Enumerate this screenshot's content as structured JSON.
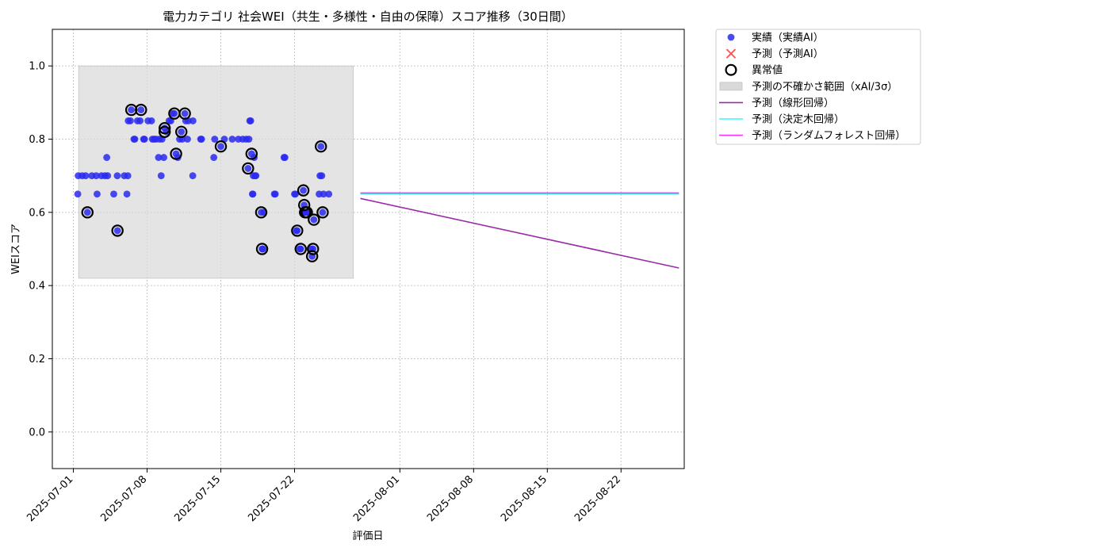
{
  "chart_data": {
    "type": "scatter",
    "title": "電力カテゴリ 社会WEI（共生・多様性・自由の保障）スコア推移（30日間）",
    "xlabel": "評価日",
    "ylabel": "WEIスコア",
    "xlim": [
      "2025-06-29",
      "2025-08-28"
    ],
    "ylim": [
      -0.1,
      1.1
    ],
    "grid": true,
    "legend_position": "outside-top-right",
    "x_tick_labels": [
      "2025-07-01",
      "2025-07-08",
      "2025-07-15",
      "2025-07-22",
      "2025-08-01",
      "2025-08-08",
      "2025-08-15",
      "2025-08-22"
    ],
    "y_tick_labels": [
      "0.0",
      "0.2",
      "0.4",
      "0.6",
      "0.8",
      "1.0"
    ],
    "y_tick_values": [
      0.0,
      0.2,
      0.4,
      0.6,
      0.8,
      1.0
    ],
    "legend": [
      {
        "label": "実績（実績AI）",
        "kind": "point",
        "color": "#2a2af0"
      },
      {
        "label": "予測（予測AI）",
        "kind": "cross",
        "color": "#ff4d4d"
      },
      {
        "label": "異常値",
        "kind": "ring",
        "color": "#000000"
      },
      {
        "label": "予測の不確かさ範囲（xAI/3σ）",
        "kind": "band",
        "color": "#d9d9d9"
      },
      {
        "label": "予測（線形回帰）",
        "kind": "line",
        "color": "#9b2aa8"
      },
      {
        "label": "予測（決定木回帰）",
        "kind": "line",
        "color": "#3ff5f5"
      },
      {
        "label": "予測（ランダムフォレスト回帰）",
        "kind": "line",
        "color": "#ff33ff"
      }
    ],
    "uncertainty_band": {
      "x_start": "2025-07-01T12:00",
      "x_end": "2025-07-27T14:00",
      "y_low": 0.42,
      "y_high": 1.0
    },
    "series": [
      {
        "name": "実績（実績AI）",
        "kind": "scatter",
        "color": "#2a2af0",
        "points": [
          [
            "2025-07-01T10:00",
            0.65
          ],
          [
            "2025-07-01T11:00",
            0.7
          ],
          [
            "2025-07-01T20:00",
            0.7
          ],
          [
            "2025-07-02T04:00",
            0.7
          ],
          [
            "2025-07-02T08:00",
            0.6
          ],
          [
            "2025-07-02T18:00",
            0.7
          ],
          [
            "2025-07-03T04:00",
            0.7
          ],
          [
            "2025-07-03T06:00",
            0.65
          ],
          [
            "2025-07-03T16:00",
            0.7
          ],
          [
            "2025-07-04T00:00",
            0.7
          ],
          [
            "2025-07-04T04:00",
            0.75
          ],
          [
            "2025-07-04T06:00",
            0.7
          ],
          [
            "2025-07-04T20:00",
            0.65
          ],
          [
            "2025-07-05T04:00",
            0.7
          ],
          [
            "2025-07-05T04:30",
            0.55
          ],
          [
            "2025-07-05T20:00",
            0.7
          ],
          [
            "2025-07-06T02:00",
            0.65
          ],
          [
            "2025-07-06T04:00",
            0.7
          ],
          [
            "2025-07-06T05:00",
            0.85
          ],
          [
            "2025-07-06T10:00",
            0.85
          ],
          [
            "2025-07-06T12:00",
            0.88
          ],
          [
            "2025-07-06T18:00",
            0.8
          ],
          [
            "2025-07-06T20:00",
            0.8
          ],
          [
            "2025-07-07T02:00",
            0.85
          ],
          [
            "2025-07-07T08:00",
            0.85
          ],
          [
            "2025-07-07T10:00",
            0.88
          ],
          [
            "2025-07-07T16:00",
            0.8
          ],
          [
            "2025-07-07T18:00",
            0.8
          ],
          [
            "2025-07-08T02:00",
            0.85
          ],
          [
            "2025-07-08T10:00",
            0.85
          ],
          [
            "2025-07-08T12:00",
            0.8
          ],
          [
            "2025-07-08T16:00",
            0.8
          ],
          [
            "2025-07-08T20:00",
            0.8
          ],
          [
            "2025-07-09T02:00",
            0.75
          ],
          [
            "2025-07-09T04:00",
            0.8
          ],
          [
            "2025-07-09T08:00",
            0.7
          ],
          [
            "2025-07-09T10:00",
            0.8
          ],
          [
            "2025-07-09T14:00",
            0.75
          ],
          [
            "2025-07-09T16:00",
            0.83
          ],
          [
            "2025-07-09T20:00",
            0.82
          ],
          [
            "2025-07-10T02:00",
            0.85
          ],
          [
            "2025-07-10T06:00",
            0.85
          ],
          [
            "2025-07-10T10:00",
            0.87
          ],
          [
            "2025-07-10T14:00",
            0.87
          ],
          [
            "2025-07-10T18:00",
            0.76
          ],
          [
            "2025-07-10T22:00",
            0.75
          ],
          [
            "2025-07-11T02:00",
            0.8
          ],
          [
            "2025-07-11T06:00",
            0.82
          ],
          [
            "2025-07-11T08:00",
            0.8
          ],
          [
            "2025-07-11T14:00",
            0.87
          ],
          [
            "2025-07-11T16:00",
            0.85
          ],
          [
            "2025-07-11T20:00",
            0.8
          ],
          [
            "2025-07-11T22:00",
            0.85
          ],
          [
            "2025-07-12T08:00",
            0.7
          ],
          [
            "2025-07-12T08:30",
            0.85
          ],
          [
            "2025-07-13T02:00",
            0.8
          ],
          [
            "2025-07-13T04:00",
            0.8
          ],
          [
            "2025-07-14T08:00",
            0.75
          ],
          [
            "2025-07-14T10:00",
            0.8
          ],
          [
            "2025-07-15T00:00",
            0.78
          ],
          [
            "2025-07-15T08:00",
            0.8
          ],
          [
            "2025-07-16T02:00",
            0.8
          ],
          [
            "2025-07-16T16:00",
            0.8
          ],
          [
            "2025-07-17T02:00",
            0.8
          ],
          [
            "2025-07-17T10:00",
            0.8
          ],
          [
            "2025-07-17T14:00",
            0.72
          ],
          [
            "2025-07-17T16:00",
            0.8
          ],
          [
            "2025-07-17T18:00",
            0.85
          ],
          [
            "2025-07-17T20:00",
            0.85
          ],
          [
            "2025-07-17T22:00",
            0.76
          ],
          [
            "2025-07-18T00:00",
            0.65
          ],
          [
            "2025-07-18T01:00",
            0.65
          ],
          [
            "2025-07-18T02:00",
            0.7
          ],
          [
            "2025-07-18T04:00",
            0.75
          ],
          [
            "2025-07-18T06:00",
            0.7
          ],
          [
            "2025-07-18T08:00",
            0.7
          ],
          [
            "2025-07-18T20:00",
            0.6
          ],
          [
            "2025-07-18T22:00",
            0.5
          ],
          [
            "2025-07-19T00:00",
            0.5
          ],
          [
            "2025-07-19T02:00",
            0.6
          ],
          [
            "2025-07-20T02:00",
            0.65
          ],
          [
            "2025-07-20T04:00",
            0.65
          ],
          [
            "2025-07-21T00:00",
            0.75
          ],
          [
            "2025-07-21T02:00",
            0.75
          ],
          [
            "2025-07-22T00:00",
            0.65
          ],
          [
            "2025-07-22T02:00",
            0.65
          ],
          [
            "2025-07-22T04:00",
            0.55
          ],
          [
            "2025-07-22T06:00",
            0.55
          ],
          [
            "2025-07-22T12:00",
            0.5
          ],
          [
            "2025-07-22T14:00",
            0.5
          ],
          [
            "2025-07-22T18:00",
            0.6
          ],
          [
            "2025-07-22T20:00",
            0.66
          ],
          [
            "2025-07-22T22:00",
            0.62
          ],
          [
            "2025-07-23T00:00",
            0.6
          ],
          [
            "2025-07-23T02:00",
            0.6
          ],
          [
            "2025-07-23T04:00",
            0.6
          ],
          [
            "2025-07-23T14:00",
            0.5
          ],
          [
            "2025-07-23T16:00",
            0.48
          ],
          [
            "2025-07-23T18:00",
            0.5
          ],
          [
            "2025-07-23T20:00",
            0.58
          ],
          [
            "2025-07-24T08:00",
            0.65
          ],
          [
            "2025-07-24T10:00",
            0.7
          ],
          [
            "2025-07-24T12:00",
            0.78
          ],
          [
            "2025-07-24T14:00",
            0.7
          ],
          [
            "2025-07-24T16:00",
            0.6
          ],
          [
            "2025-07-24T18:00",
            0.65
          ],
          [
            "2025-07-25T06:00",
            0.65
          ]
        ]
      },
      {
        "name": "異常値",
        "kind": "ring",
        "color": "#000000",
        "points": [
          [
            "2025-07-02T08:00",
            0.6
          ],
          [
            "2025-07-05T04:30",
            0.55
          ],
          [
            "2025-07-06T12:00",
            0.88
          ],
          [
            "2025-07-07T10:00",
            0.88
          ],
          [
            "2025-07-09T16:00",
            0.83
          ],
          [
            "2025-07-09T16:00",
            0.82
          ],
          [
            "2025-07-10T14:00",
            0.87
          ],
          [
            "2025-07-10T18:00",
            0.76
          ],
          [
            "2025-07-11T06:00",
            0.82
          ],
          [
            "2025-07-11T14:00",
            0.87
          ],
          [
            "2025-07-15T00:00",
            0.78
          ],
          [
            "2025-07-17T14:00",
            0.72
          ],
          [
            "2025-07-17T22:00",
            0.76
          ],
          [
            "2025-07-18T20:00",
            0.6
          ],
          [
            "2025-07-18T22:00",
            0.5
          ],
          [
            "2025-07-22T06:00",
            0.55
          ],
          [
            "2025-07-22T14:00",
            0.5
          ],
          [
            "2025-07-22T20:00",
            0.66
          ],
          [
            "2025-07-22T22:00",
            0.62
          ],
          [
            "2025-07-23T00:00",
            0.6
          ],
          [
            "2025-07-23T04:00",
            0.6
          ],
          [
            "2025-07-23T16:00",
            0.48
          ],
          [
            "2025-07-23T18:00",
            0.5
          ],
          [
            "2025-07-23T20:00",
            0.58
          ],
          [
            "2025-07-24T12:00",
            0.78
          ],
          [
            "2025-07-24T16:00",
            0.6
          ]
        ]
      },
      {
        "name": "予測（線形回帰）",
        "kind": "line",
        "color": "#9b2aa8",
        "points": [
          [
            "2025-07-28T06:00",
            0.638
          ],
          [
            "2025-08-27T12:00",
            0.448
          ]
        ]
      },
      {
        "name": "予測（決定木回帰）",
        "kind": "line",
        "color": "#3ff5f5",
        "points": [
          [
            "2025-07-28T06:00",
            0.65
          ],
          [
            "2025-08-27T12:00",
            0.65
          ]
        ]
      },
      {
        "name": "予測（ランダムフォレスト回帰）",
        "kind": "line",
        "color": "#ff33ff",
        "points": [
          [
            "2025-07-28T06:00",
            0.653
          ],
          [
            "2025-08-27T12:00",
            0.653
          ]
        ]
      }
    ]
  }
}
